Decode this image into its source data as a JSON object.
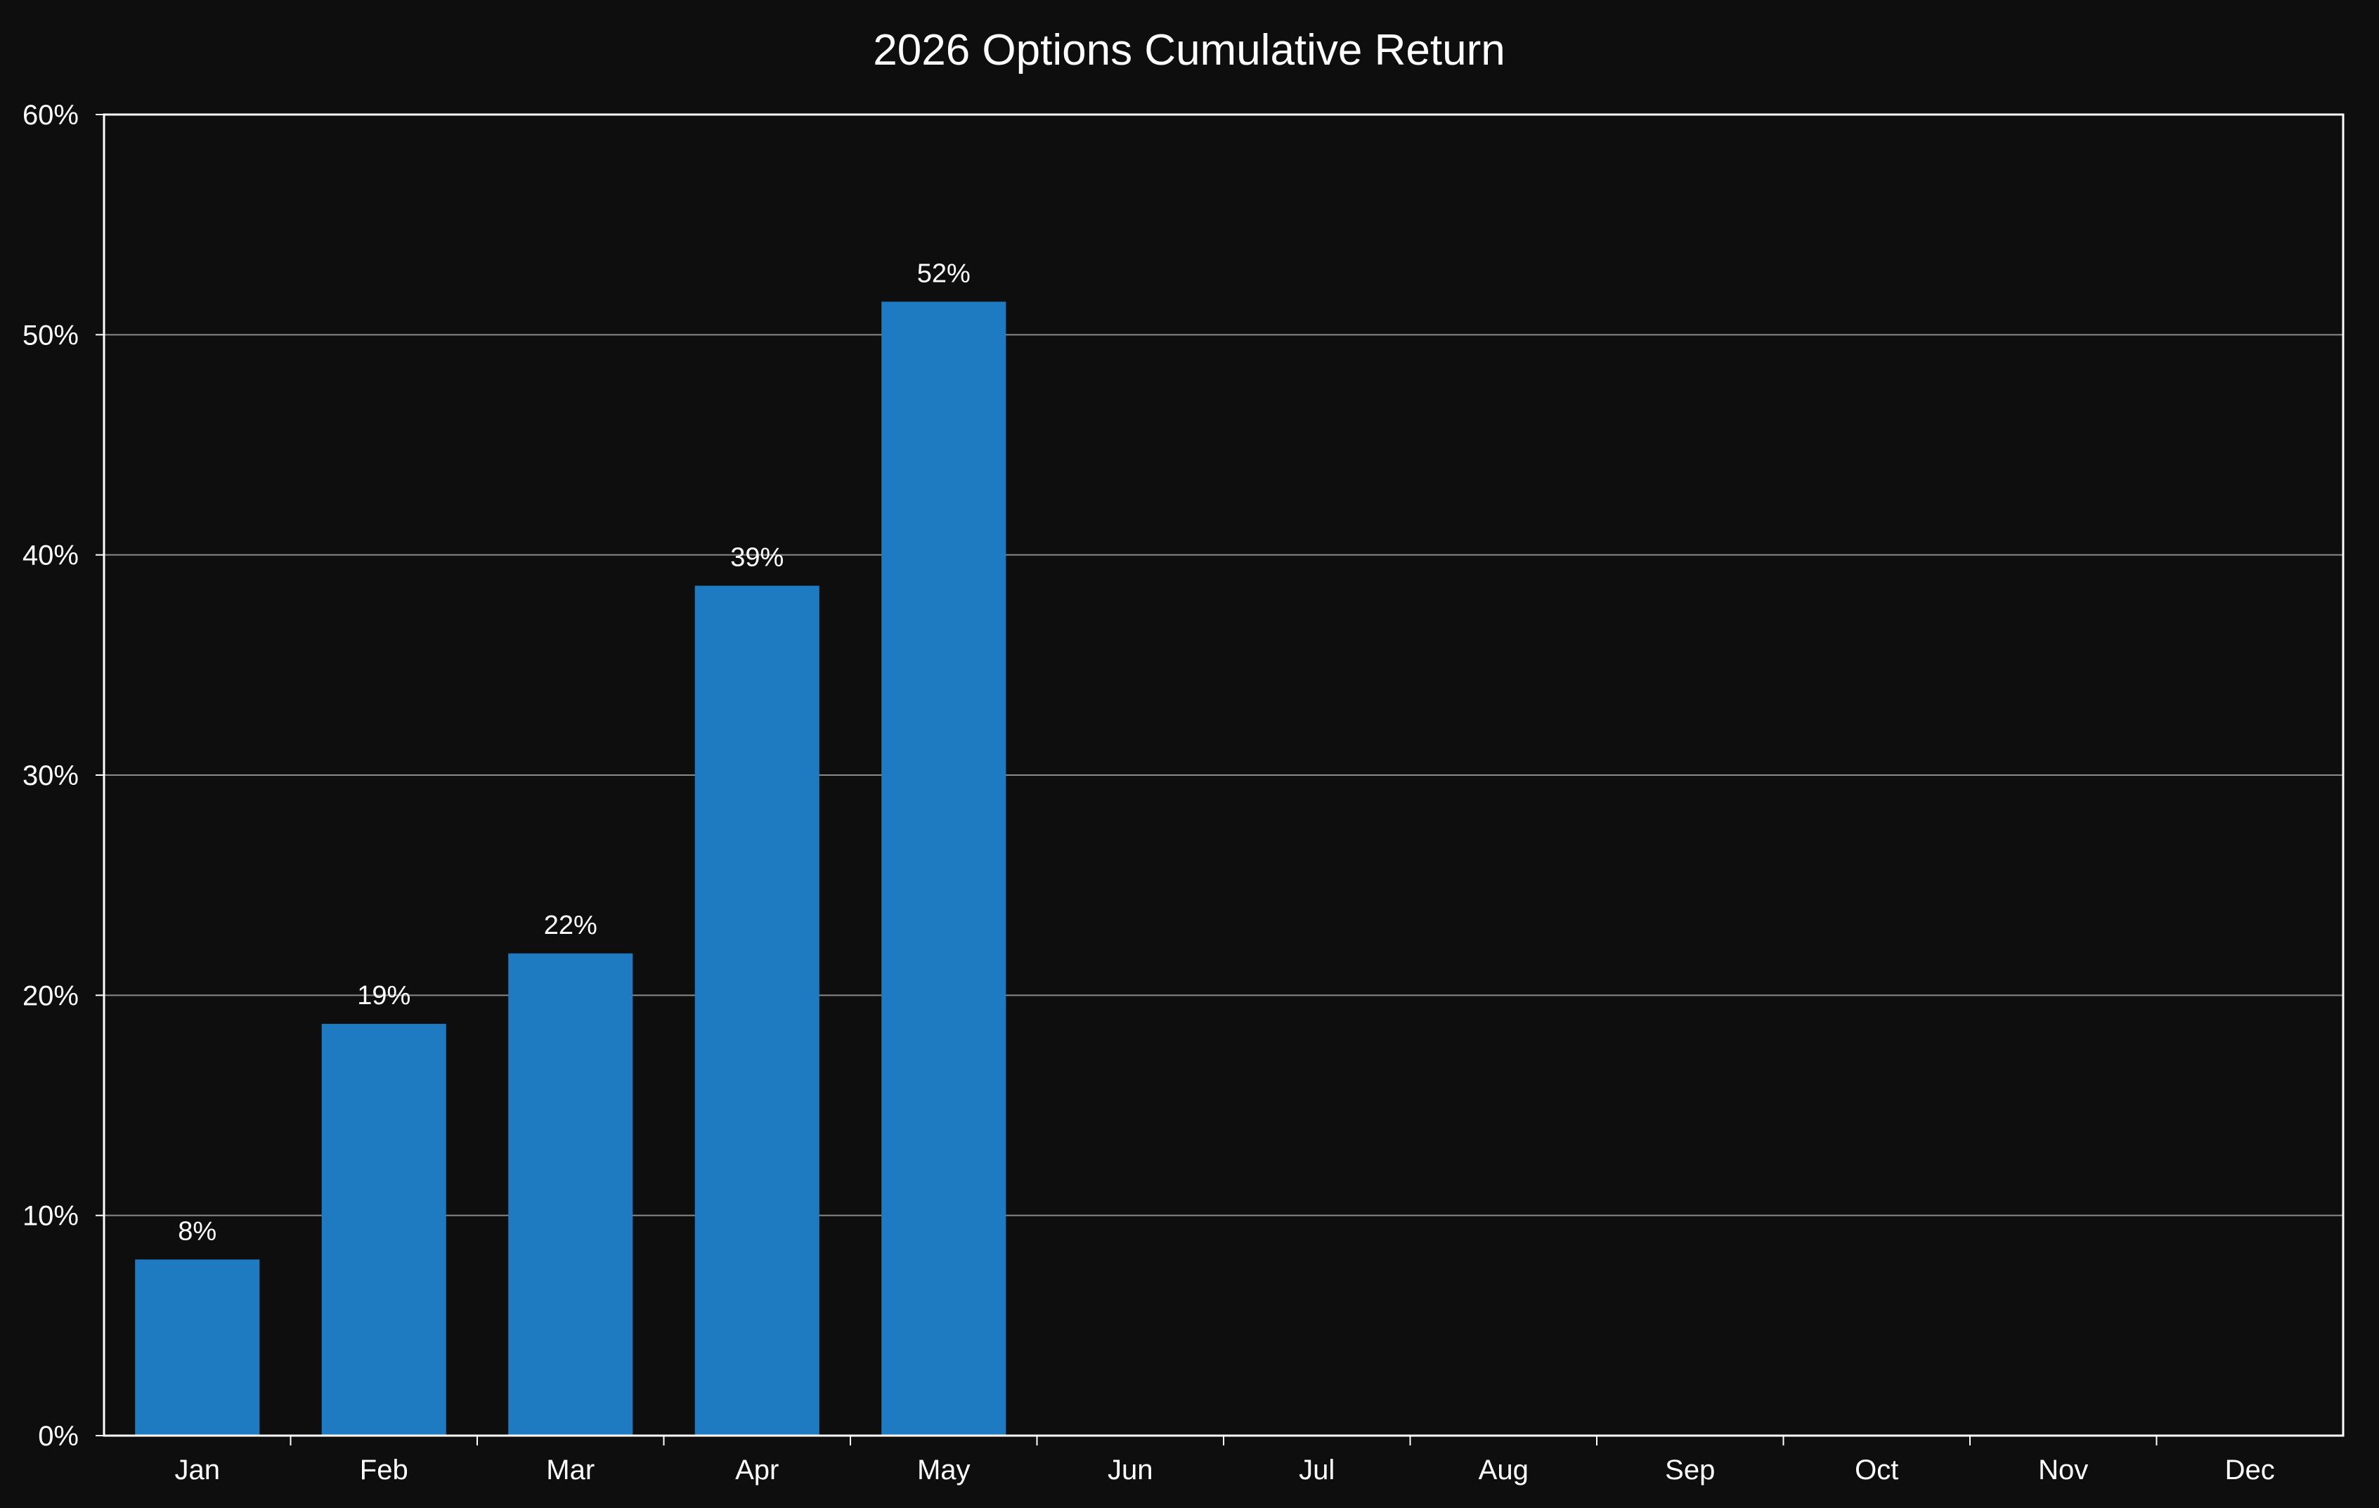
{
  "chart_data": {
    "type": "bar",
    "title": "2026 Options Cumulative Return",
    "xlabel": "",
    "ylabel": "",
    "categories": [
      "Jan",
      "Feb",
      "Mar",
      "Apr",
      "May",
      "Jun",
      "Jul",
      "Aug",
      "Sep",
      "Oct",
      "Nov",
      "Dec"
    ],
    "values": [
      8.0,
      18.7,
      21.9,
      38.6,
      51.5,
      null,
      null,
      null,
      null,
      null,
      null,
      null
    ],
    "data_labels": [
      "8%",
      "19%",
      "22%",
      "39%",
      "52%",
      "",
      "",
      "",
      "",
      "",
      "",
      ""
    ],
    "ylim": [
      0,
      60
    ],
    "yticks": [
      0,
      10,
      20,
      30,
      40,
      50,
      60
    ],
    "ytick_labels": [
      "0%",
      "10%",
      "20%",
      "30%",
      "40%",
      "50%",
      "60%"
    ],
    "grid": "horizontal",
    "legend": "none",
    "colors": {
      "background": "#0e0e0e",
      "bar": "#1f7bc1",
      "text": "#ffffff",
      "grid": "#8a8a8a",
      "axis": "#ffffff"
    }
  }
}
